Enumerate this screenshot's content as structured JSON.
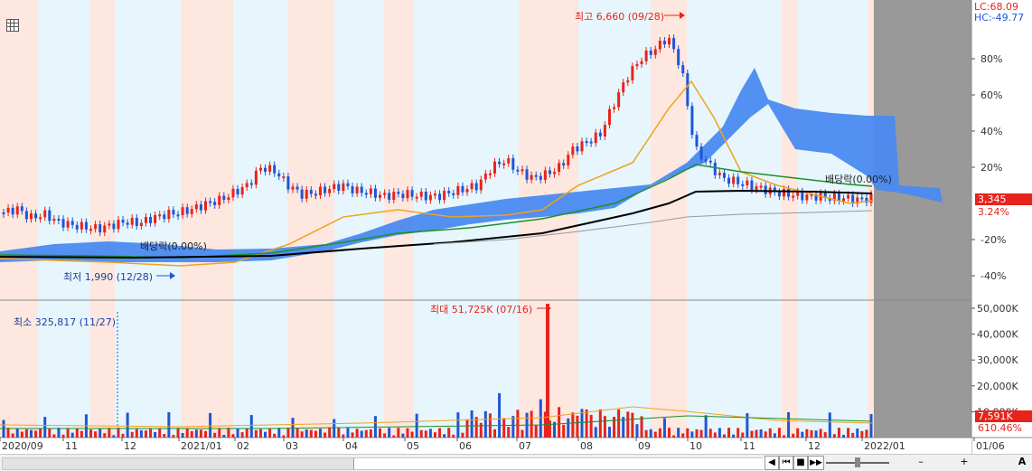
{
  "colors": {
    "band_light_blue": "#e6f6fc",
    "band_pink": "#fde7df",
    "candle_up": "#e8231b",
    "candle_down": "#1f55d6",
    "cloud": "#4a8af0",
    "ma_orange": "#f0a21f",
    "ma_green": "#1f8f2a",
    "ma_black": "#000000",
    "ma_gray": "#999999",
    "axis_bg": "#ffffff",
    "future_gray": "#999999"
  },
  "toolbar": {
    "top_left_icon": "table-grid-icon"
  },
  "indicators": {
    "lc": "LC:68.09",
    "hc": "HC:-49.77"
  },
  "price_panel": {
    "y_ticks": [
      "80%",
      "60%",
      "40%",
      "20%",
      "-20%",
      "-40%"
    ],
    "annotations": {
      "high_label": "최고 6,660 (09/28)",
      "low_label": "최저 1,990 (12/28)",
      "dividend_left": "배당락(0.00%)",
      "dividend_right": "배당락(0.00%)"
    },
    "current_price": "3,345",
    "current_pct": "3.24%"
  },
  "volume_panel": {
    "y_ticks": [
      "50,000K",
      "40,000K",
      "30,000K",
      "20,000K",
      "10,000K"
    ],
    "annotations": {
      "max_label": "최대 51,725K (07/16)",
      "min_label": "최소 325,817 (11/27)"
    },
    "current_volume": "7,591K",
    "current_pct": "610.46%"
  },
  "x_axis": {
    "labels": [
      "2020/09",
      "11",
      "12",
      "2021/01",
      "02",
      "03",
      "04",
      "05",
      "06",
      "07",
      "08",
      "09",
      "10",
      "11",
      "12",
      "2022/01",
      "01/06"
    ]
  },
  "bottom_controls": {
    "buttons": [
      "◀",
      "⏮",
      "◀",
      "■",
      "▶▶",
      "–",
      "+",
      "A"
    ]
  },
  "chart_data": {
    "type": "candlestick",
    "price_panel_scale": "percent",
    "y_range_pct": [
      -50,
      100
    ],
    "key_points": [
      {
        "label": "최저",
        "date": "12/28",
        "price": 1990
      },
      {
        "label": "최고",
        "date": "09/28",
        "price": 6660
      },
      {
        "label": "current",
        "price": 3345,
        "pct": 3.24
      }
    ],
    "approx_close_path_pct": [
      -5,
      -3,
      -8,
      -6,
      -10,
      -12,
      -13,
      -14,
      -12,
      -10,
      -11,
      -8,
      -6,
      -5,
      -3,
      0,
      2,
      6,
      10,
      20,
      18,
      10,
      5,
      6,
      8,
      10,
      7,
      6,
      4,
      5,
      5,
      4,
      4,
      6,
      8,
      10,
      20,
      24,
      18,
      14,
      16,
      20,
      30,
      34,
      38,
      55,
      70,
      80,
      85,
      92,
      75,
      30,
      22,
      14,
      12,
      10,
      8,
      6,
      5,
      4,
      4,
      3,
      3,
      2,
      3
    ],
    "volume_max_k": 51725,
    "volume_min": 325817
  }
}
